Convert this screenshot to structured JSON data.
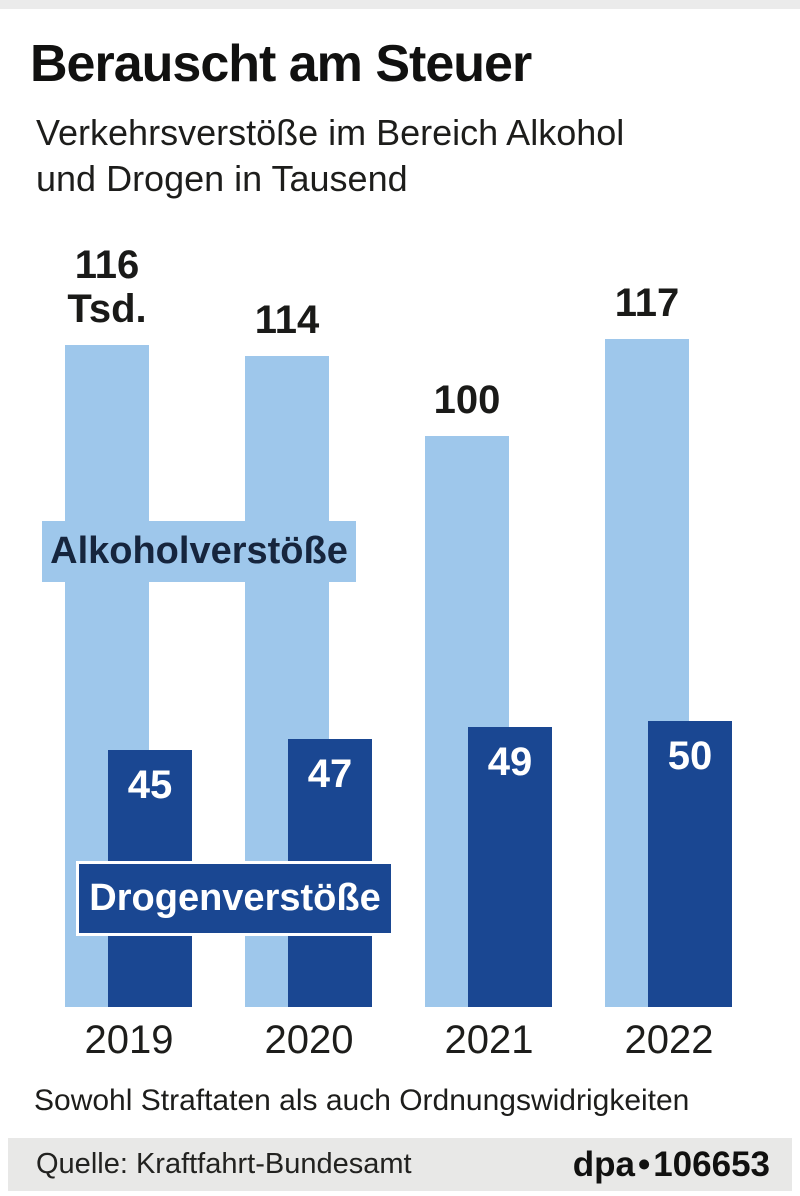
{
  "header": {
    "title": "Berauscht am Steuer",
    "subtitle_line1": "Verkehrsverstöße im Bereich Alkohol",
    "subtitle_line2": "und Drogen in Tausend"
  },
  "chart_data": {
    "type": "bar",
    "title": "Berauscht am Steuer",
    "subtitle": "Verkehrsverstöße im Bereich Alkohol und Drogen in Tausend",
    "categories": [
      "2019",
      "2020",
      "2021",
      "2022"
    ],
    "series": [
      {
        "name": "Alkoholverstöße",
        "values": [
          116,
          114,
          100,
          117
        ],
        "value_labels": [
          "116",
          "114",
          "100",
          "117"
        ],
        "color": "#9ec7eb"
      },
      {
        "name": "Drogenverstöße",
        "values": [
          45,
          47,
          49,
          50
        ],
        "value_labels": [
          "45",
          "47",
          "49",
          "50"
        ],
        "color": "#1a4792"
      }
    ],
    "unit_suffix_first_bar": "Tsd.",
    "xlabel": "",
    "ylabel": "",
    "grid": false,
    "legend_position": "labels overlaid on bars"
  },
  "footer": {
    "note": "Sowohl Straftaten als auch Ordnungswidrigkeiten",
    "source": "Quelle: Kraftfahrt-Bundesamt",
    "agency": "dpa",
    "separator": "•",
    "graphic_id": "106653"
  },
  "colors": {
    "light_blue": "#9ec7eb",
    "dark_blue": "#1a4792",
    "footer_gray": "#e8e8e7",
    "top_strip_gray": "#ebebeb",
    "text_dark": "#1a1a18"
  }
}
